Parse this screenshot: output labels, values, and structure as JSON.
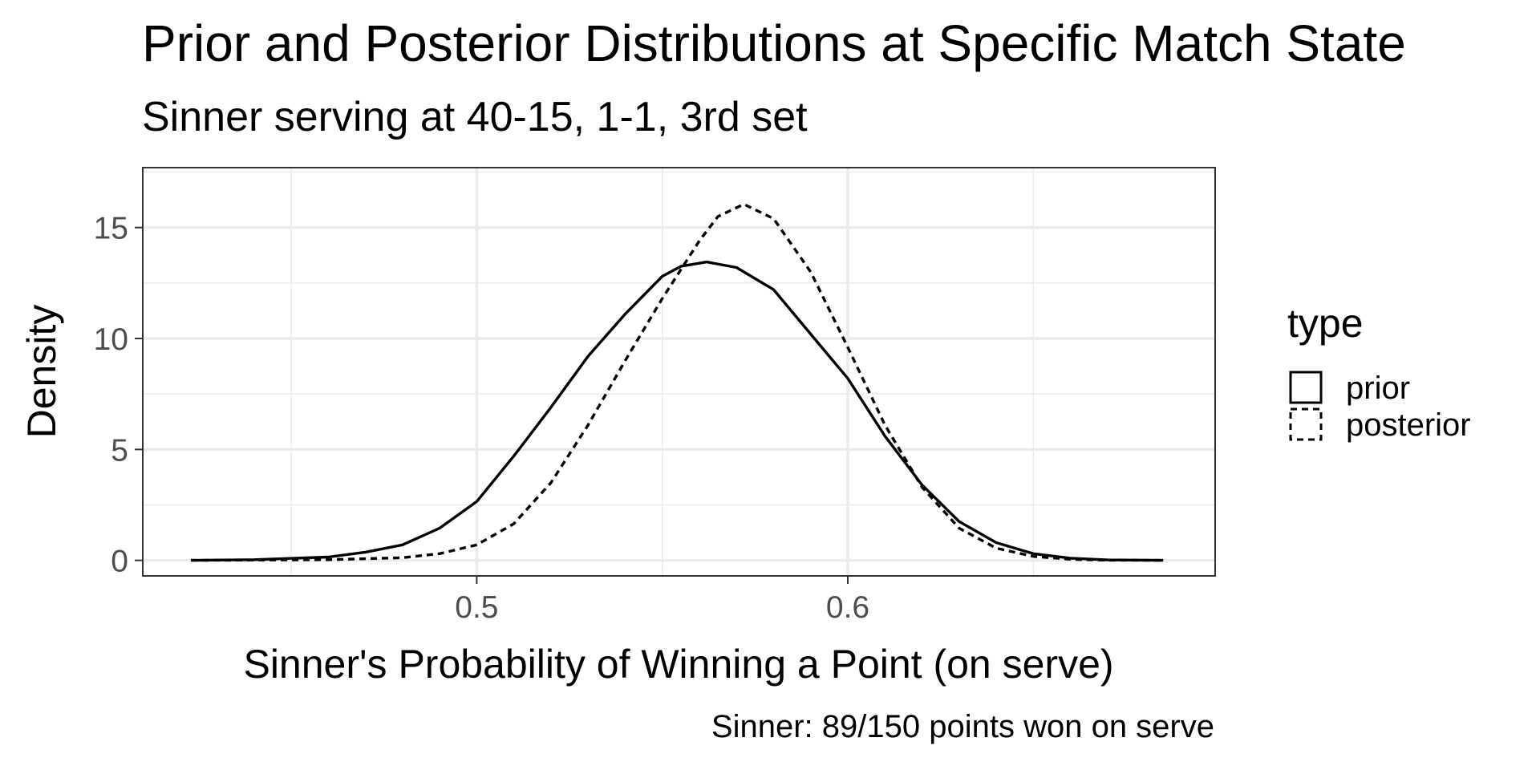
{
  "chart_data": {
    "type": "line",
    "title": "Prior and Posterior Distributions at Specific Match State",
    "subtitle": "Sinner serving at 40-15, 1-1, 3rd set",
    "caption": "Sinner: 89/150 points won on serve",
    "xlabel": "Sinner's Probability of Winning a Point (on serve)",
    "ylabel": "Density",
    "xlim": [
      0.41,
      0.699
    ],
    "ylim": [
      -0.7,
      17.7
    ],
    "x_ticks": [
      0.5,
      0.6
    ],
    "x_tick_labels": [
      "0.5",
      "0.6"
    ],
    "y_ticks": [
      0,
      5,
      10,
      15
    ],
    "y_tick_labels": [
      "0",
      "5",
      "10",
      "15"
    ],
    "grid": true,
    "legend": {
      "title": "type",
      "position": "right"
    },
    "series": [
      {
        "name": "prior",
        "linetype": "solid",
        "color": "#000000",
        "x": [
          0.423,
          0.44,
          0.46,
          0.47,
          0.48,
          0.49,
          0.5,
          0.51,
          0.52,
          0.53,
          0.54,
          0.55,
          0.555,
          0.562,
          0.57,
          0.58,
          0.59,
          0.6,
          0.61,
          0.62,
          0.63,
          0.64,
          0.65,
          0.66,
          0.67,
          0.685
        ],
        "y": [
          0.0,
          0.03,
          0.15,
          0.37,
          0.7,
          1.45,
          2.65,
          4.7,
          6.9,
          9.2,
          11.1,
          12.8,
          13.25,
          13.45,
          13.2,
          12.2,
          10.2,
          8.2,
          5.6,
          3.4,
          1.75,
          0.8,
          0.3,
          0.1,
          0.02,
          0.0
        ]
      },
      {
        "name": "posterior",
        "linetype": "dashed",
        "color": "#000000",
        "x": [
          0.423,
          0.46,
          0.48,
          0.49,
          0.5,
          0.51,
          0.52,
          0.53,
          0.54,
          0.55,
          0.56,
          0.565,
          0.572,
          0.58,
          0.59,
          0.6,
          0.61,
          0.62,
          0.63,
          0.64,
          0.65,
          0.66,
          0.67,
          0.685
        ],
        "y": [
          0.0,
          0.03,
          0.12,
          0.3,
          0.7,
          1.65,
          3.5,
          6.1,
          9.0,
          11.8,
          14.4,
          15.5,
          16.05,
          15.4,
          13.0,
          9.6,
          6.1,
          3.3,
          1.45,
          0.55,
          0.18,
          0.05,
          0.01,
          0.0
        ]
      }
    ]
  }
}
